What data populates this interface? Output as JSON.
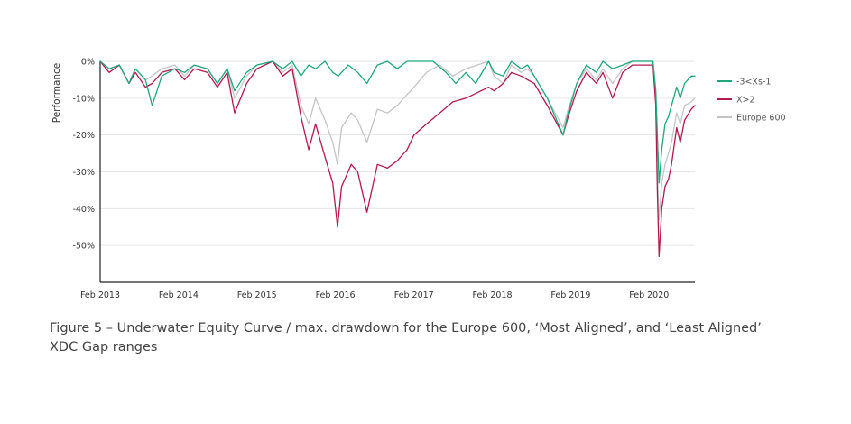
{
  "chart_data": {
    "type": "line",
    "title": "",
    "xlabel": "",
    "ylabel": "Performance",
    "ylim": [
      -60,
      0
    ],
    "xlim": [
      "2013-02",
      "2020-09"
    ],
    "y_ticks": [
      0,
      -10,
      -20,
      -30,
      -40,
      -50
    ],
    "y_tick_labels": [
      "0%",
      "-10%",
      "-20%",
      "-30%",
      "-40%",
      "-50%"
    ],
    "x_ticks": [
      "2013-02",
      "2014-02",
      "2015-02",
      "2016-02",
      "2017-02",
      "2018-02",
      "2019-02",
      "2020-02"
    ],
    "x_tick_labels": [
      "Feb 2013",
      "Feb 2014",
      "Feb 2015",
      "Feb 2016",
      "Feb 2017",
      "Feb 2018",
      "Feb 2019",
      "Feb 2020"
    ],
    "grid": "horizontal",
    "legend_position": "right",
    "series": [
      {
        "name": "-3<Xs-1",
        "color": "#1fa77a",
        "points": [
          [
            "2013-02-01",
            0
          ],
          [
            "2013-03-15",
            -2
          ],
          [
            "2013-05-01",
            -1
          ],
          [
            "2013-06-15",
            -6
          ],
          [
            "2013-07-15",
            -2
          ],
          [
            "2013-08-31",
            -5
          ],
          [
            "2013-10-01",
            -12
          ],
          [
            "2013-11-15",
            -4
          ],
          [
            "2014-01-15",
            -2
          ],
          [
            "2014-03-01",
            -3
          ],
          [
            "2014-04-15",
            -1
          ],
          [
            "2014-06-15",
            -2
          ],
          [
            "2014-08-01",
            -6
          ],
          [
            "2014-09-15",
            -2
          ],
          [
            "2014-10-20",
            -8
          ],
          [
            "2014-12-15",
            -3
          ],
          [
            "2015-02-01",
            -1
          ],
          [
            "2015-04-15",
            0
          ],
          [
            "2015-06-01",
            -2
          ],
          [
            "2015-07-15",
            0
          ],
          [
            "2015-08-25",
            -4
          ],
          [
            "2015-09-30",
            -1
          ],
          [
            "2015-11-01",
            -2
          ],
          [
            "2015-12-15",
            0
          ],
          [
            "2016-01-20",
            -3
          ],
          [
            "2016-02-15",
            -4
          ],
          [
            "2016-04-01",
            -1
          ],
          [
            "2016-05-15",
            -3
          ],
          [
            "2016-06-27",
            -6
          ],
          [
            "2016-08-15",
            -1
          ],
          [
            "2016-10-01",
            0
          ],
          [
            "2016-11-15",
            -2
          ],
          [
            "2016-12-31",
            0
          ],
          [
            "2017-03-01",
            0
          ],
          [
            "2017-05-01",
            0
          ],
          [
            "2017-06-30",
            -3
          ],
          [
            "2017-08-15",
            -6
          ],
          [
            "2017-10-01",
            -3
          ],
          [
            "2017-11-15",
            -6
          ],
          [
            "2018-01-15",
            0
          ],
          [
            "2018-02-09",
            -3
          ],
          [
            "2018-03-23",
            -4
          ],
          [
            "2018-05-01",
            0
          ],
          [
            "2018-06-15",
            -2
          ],
          [
            "2018-07-15",
            -1
          ],
          [
            "2018-08-15",
            -4
          ],
          [
            "2018-10-15",
            -10
          ],
          [
            "2018-12-27",
            -20
          ],
          [
            "2019-01-20",
            -14
          ],
          [
            "2019-03-01",
            -6
          ],
          [
            "2019-04-15",
            -1
          ],
          [
            "2019-05-31",
            -3
          ],
          [
            "2019-07-01",
            0
          ],
          [
            "2019-08-15",
            -2
          ],
          [
            "2019-10-01",
            -1
          ],
          [
            "2019-11-15",
            0
          ],
          [
            "2020-01-15",
            0
          ],
          [
            "2020-02-19",
            0
          ],
          [
            "2020-03-03",
            -8
          ],
          [
            "2020-03-10",
            -20
          ],
          [
            "2020-03-18",
            -33
          ],
          [
            "2020-03-31",
            -24
          ],
          [
            "2020-04-15",
            -17
          ],
          [
            "2020-05-01",
            -15
          ],
          [
            "2020-05-15",
            -12
          ],
          [
            "2020-06-08",
            -7
          ],
          [
            "2020-06-25",
            -10
          ],
          [
            "2020-07-15",
            -6
          ],
          [
            "2020-08-15",
            -4
          ],
          [
            "2020-09-01",
            -4
          ]
        ]
      },
      {
        "name": "X>2",
        "color": "#b3184f",
        "points": [
          [
            "2013-02-01",
            0
          ],
          [
            "2013-03-15",
            -3
          ],
          [
            "2013-05-01",
            -1
          ],
          [
            "2013-06-15",
            -6
          ],
          [
            "2013-07-15",
            -3
          ],
          [
            "2013-08-31",
            -7
          ],
          [
            "2013-10-01",
            -6
          ],
          [
            "2013-11-15",
            -3
          ],
          [
            "2014-01-15",
            -2
          ],
          [
            "2014-03-01",
            -5
          ],
          [
            "2014-04-15",
            -2
          ],
          [
            "2014-06-15",
            -3
          ],
          [
            "2014-08-01",
            -7
          ],
          [
            "2014-09-15",
            -3
          ],
          [
            "2014-10-20",
            -14
          ],
          [
            "2014-12-15",
            -6
          ],
          [
            "2015-02-01",
            -2
          ],
          [
            "2015-04-15",
            0
          ],
          [
            "2015-06-01",
            -4
          ],
          [
            "2015-07-15",
            -2
          ],
          [
            "2015-08-25",
            -15
          ],
          [
            "2015-09-30",
            -24
          ],
          [
            "2015-11-01",
            -17
          ],
          [
            "2015-12-15",
            -26
          ],
          [
            "2016-01-20",
            -33
          ],
          [
            "2016-02-11",
            -45
          ],
          [
            "2016-03-01",
            -34
          ],
          [
            "2016-04-15",
            -28
          ],
          [
            "2016-05-15",
            -30
          ],
          [
            "2016-06-27",
            -41
          ],
          [
            "2016-08-15",
            -28
          ],
          [
            "2016-10-01",
            -29
          ],
          [
            "2016-11-15",
            -27
          ],
          [
            "2016-12-31",
            -24
          ],
          [
            "2017-02-01",
            -20
          ],
          [
            "2017-04-01",
            -17
          ],
          [
            "2017-06-01",
            -14
          ],
          [
            "2017-08-01",
            -11
          ],
          [
            "2017-10-01",
            -10
          ],
          [
            "2018-01-15",
            -7
          ],
          [
            "2018-02-09",
            -8
          ],
          [
            "2018-03-23",
            -6
          ],
          [
            "2018-05-01",
            -3
          ],
          [
            "2018-06-15",
            -4
          ],
          [
            "2018-07-15",
            -5
          ],
          [
            "2018-08-15",
            -6
          ],
          [
            "2018-10-15",
            -12
          ],
          [
            "2018-12-27",
            -20
          ],
          [
            "2019-01-20",
            -15
          ],
          [
            "2019-03-01",
            -8
          ],
          [
            "2019-04-15",
            -3
          ],
          [
            "2019-05-31",
            -6
          ],
          [
            "2019-07-01",
            -3
          ],
          [
            "2019-08-15",
            -10
          ],
          [
            "2019-10-01",
            -3
          ],
          [
            "2019-11-15",
            -1
          ],
          [
            "2020-01-15",
            -1
          ],
          [
            "2020-02-19",
            -1
          ],
          [
            "2020-03-03",
            -12
          ],
          [
            "2020-03-10",
            -35
          ],
          [
            "2020-03-18",
            -53
          ],
          [
            "2020-03-31",
            -40
          ],
          [
            "2020-04-15",
            -34
          ],
          [
            "2020-05-01",
            -32
          ],
          [
            "2020-05-15",
            -28
          ],
          [
            "2020-06-08",
            -18
          ],
          [
            "2020-06-25",
            -22
          ],
          [
            "2020-07-15",
            -16
          ],
          [
            "2020-08-15",
            -13
          ],
          [
            "2020-09-01",
            -12
          ]
        ]
      },
      {
        "name": "Europe 600",
        "color": "#c4c4c4",
        "points": [
          [
            "2013-02-01",
            0
          ],
          [
            "2013-03-15",
            -2
          ],
          [
            "2013-05-01",
            -1
          ],
          [
            "2013-06-15",
            -6
          ],
          [
            "2013-07-15",
            -2
          ],
          [
            "2013-08-31",
            -5
          ],
          [
            "2013-10-01",
            -4
          ],
          [
            "2013-11-15",
            -2
          ],
          [
            "2014-01-15",
            -1
          ],
          [
            "2014-03-01",
            -4
          ],
          [
            "2014-04-15",
            -1
          ],
          [
            "2014-06-15",
            -2
          ],
          [
            "2014-08-01",
            -6
          ],
          [
            "2014-09-15",
            -2
          ],
          [
            "2014-10-20",
            -10
          ],
          [
            "2014-12-15",
            -4
          ],
          [
            "2015-02-01",
            -1
          ],
          [
            "2015-04-15",
            0
          ],
          [
            "2015-06-01",
            -3
          ],
          [
            "2015-07-15",
            -1
          ],
          [
            "2015-08-25",
            -12
          ],
          [
            "2015-09-30",
            -17
          ],
          [
            "2015-11-01",
            -10
          ],
          [
            "2015-12-15",
            -16
          ],
          [
            "2016-01-20",
            -22
          ],
          [
            "2016-02-11",
            -28
          ],
          [
            "2016-03-01",
            -18
          ],
          [
            "2016-04-15",
            -14
          ],
          [
            "2016-05-15",
            -16
          ],
          [
            "2016-06-27",
            -22
          ],
          [
            "2016-08-15",
            -13
          ],
          [
            "2016-10-01",
            -14
          ],
          [
            "2016-11-15",
            -12
          ],
          [
            "2016-12-31",
            -9
          ],
          [
            "2017-02-01",
            -7
          ],
          [
            "2017-04-01",
            -3
          ],
          [
            "2017-06-01",
            -1
          ],
          [
            "2017-08-01",
            -4
          ],
          [
            "2017-10-01",
            -2
          ],
          [
            "2018-01-15",
            0
          ],
          [
            "2018-02-09",
            -4
          ],
          [
            "2018-03-23",
            -6
          ],
          [
            "2018-05-01",
            -1
          ],
          [
            "2018-06-15",
            -3
          ],
          [
            "2018-07-15",
            -2
          ],
          [
            "2018-08-15",
            -4
          ],
          [
            "2018-10-15",
            -10
          ],
          [
            "2018-12-27",
            -18
          ],
          [
            "2019-01-20",
            -13
          ],
          [
            "2019-03-01",
            -6
          ],
          [
            "2019-04-15",
            -2
          ],
          [
            "2019-05-31",
            -5
          ],
          [
            "2019-07-01",
            -2
          ],
          [
            "2019-08-15",
            -6
          ],
          [
            "2019-10-01",
            -2
          ],
          [
            "2019-11-15",
            0
          ],
          [
            "2020-01-15",
            0
          ],
          [
            "2020-02-19",
            0
          ],
          [
            "2020-03-03",
            -10
          ],
          [
            "2020-03-10",
            -30
          ],
          [
            "2020-03-18",
            -43
          ],
          [
            "2020-03-31",
            -33
          ],
          [
            "2020-04-15",
            -28
          ],
          [
            "2020-05-01",
            -25
          ],
          [
            "2020-05-15",
            -22
          ],
          [
            "2020-06-08",
            -14
          ],
          [
            "2020-06-25",
            -17
          ],
          [
            "2020-07-15",
            -12
          ],
          [
            "2020-08-15",
            -11
          ],
          [
            "2020-09-01",
            -10
          ]
        ]
      }
    ]
  },
  "caption": "Figure 5 – Underwater Equity Curve / max. drawdown for the Europe 600, ‘Most Aligned’, and ‘Least Aligned’ XDC Gap ranges"
}
